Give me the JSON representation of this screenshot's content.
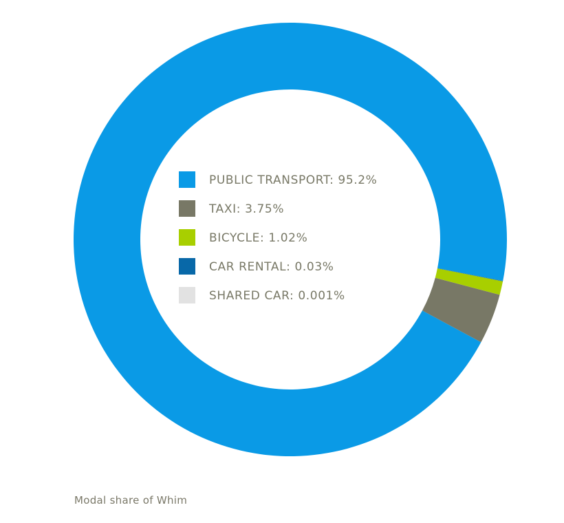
{
  "chart_data": {
    "type": "pie",
    "variant": "donut",
    "slices": [
      {
        "label": "PUBLIC TRANSPORT",
        "value": 95.2,
        "display": "95.2%",
        "color": "#0a9ae6"
      },
      {
        "label": "TAXI",
        "value": 3.75,
        "display": "3.75%",
        "color": "#787866"
      },
      {
        "label": "BICYCLE",
        "value": 1.02,
        "display": "1.02%",
        "color": "#a8cf00"
      },
      {
        "label": "CAR RENTAL",
        "value": 0.03,
        "display": "0.03%",
        "color": "#0868a8"
      },
      {
        "label": "SHARED CAR",
        "value": 0.001,
        "display": "0.001%",
        "color": "#e2e2e2"
      }
    ],
    "legend_placement": "center",
    "legend_text_color": "#787866"
  },
  "caption": "Modal share of Whim"
}
